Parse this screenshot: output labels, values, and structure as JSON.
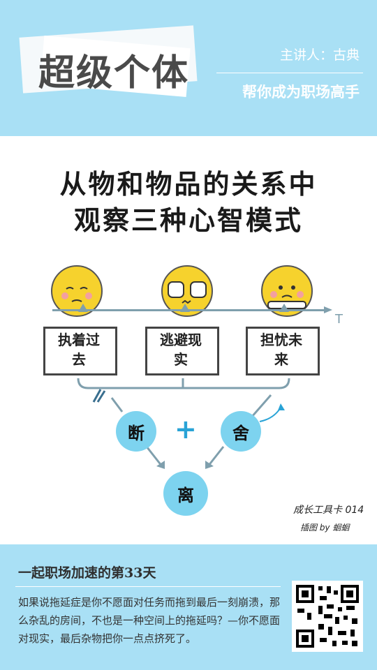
{
  "header": {
    "title": "超级个体",
    "speaker": "主讲人：古典",
    "slogan": "帮你成为职场高手"
  },
  "illustration": {
    "title_line1": "从物和物品的关系中",
    "title_line2": "观察三种心智模式",
    "modes": [
      "执着过去",
      "逃避现实",
      "担忧未来"
    ],
    "axis_label": "T",
    "cut_label": "断",
    "discard_label": "舍",
    "plus": "+",
    "leave_label": "离",
    "card_label": "成长工具卡 014",
    "credit": "插图 by 蛔蛔"
  },
  "footer": {
    "day_title": "一起职场加速的第33天",
    "paragraph": "如果说拖延症是你不愿面对任务而拖到最后一刻崩溃，那么杂乱的房间，不也是一种空间上的拖延吗？—你不愿面对现实，最后杂物把你一点点挤死了。",
    "qr_icon": "qr-code-icon"
  },
  "colors": {
    "band": "#a9e0f5",
    "face": "#f6d22d",
    "circle": "#7dd3ef",
    "accent": "#29a3d6"
  }
}
